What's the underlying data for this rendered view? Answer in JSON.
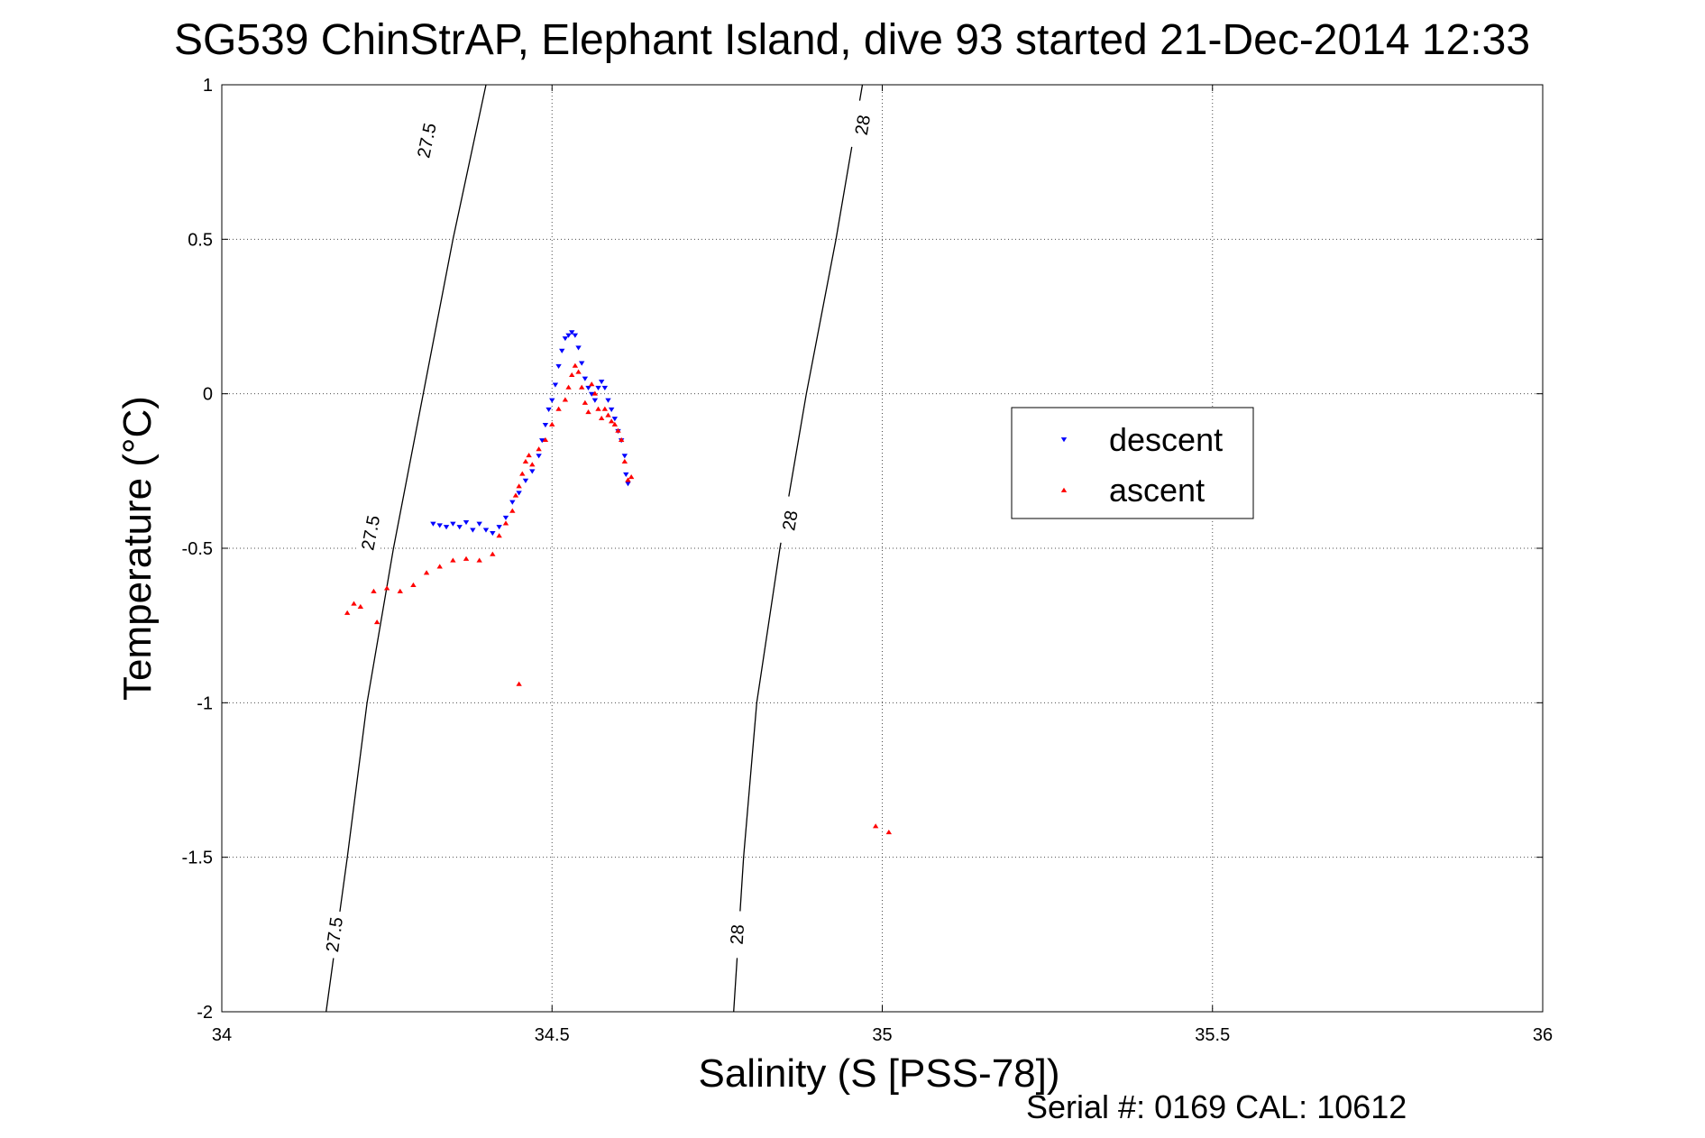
{
  "chart_data": {
    "type": "scatter",
    "title": "SG539 ChinStrAP, Elephant Island, dive 93 started 21-Dec-2014 12:33",
    "xlabel": "Salinity (S [PSS-78])",
    "ylabel": "Temperature (°C)",
    "xlim": [
      34,
      36
    ],
    "ylim": [
      -2,
      1
    ],
    "xticks": [
      34,
      34.5,
      35,
      35.5,
      36
    ],
    "xtick_labels": [
      "34",
      "34.5",
      "35",
      "35.5",
      "36"
    ],
    "yticks": [
      -2,
      -1.5,
      -1,
      -0.5,
      0,
      0.5,
      1
    ],
    "ytick_labels": [
      "-2",
      "-1.5",
      "-1",
      "-0.5",
      "0",
      "0.5",
      "1"
    ],
    "grid": true,
    "legend_position": "right-center",
    "colors": {
      "descent": "#0000ff",
      "ascent": "#ff0000",
      "contour": "#000000"
    },
    "contours": [
      {
        "level_label": "27.5",
        "points": [
          [
            34.158,
            -2.0
          ],
          [
            34.19,
            -1.5
          ],
          [
            34.22,
            -1.0
          ],
          [
            34.26,
            -0.5
          ],
          [
            34.305,
            0.0
          ],
          [
            34.35,
            0.5
          ],
          [
            34.4,
            1.0
          ]
        ],
        "labels_at": [
          [
            34.17,
            -1.75
          ],
          [
            34.225,
            -0.45
          ],
          [
            34.31,
            0.82
          ]
        ]
      },
      {
        "level_label": "28",
        "points": [
          [
            34.775,
            -2.0
          ],
          [
            34.79,
            -1.5
          ],
          [
            34.81,
            -1.0
          ],
          [
            34.845,
            -0.5
          ],
          [
            34.885,
            0.0
          ],
          [
            34.93,
            0.5
          ],
          [
            34.97,
            1.0
          ]
        ],
        "labels_at": [
          [
            34.78,
            -1.75
          ],
          [
            34.86,
            -0.41
          ],
          [
            34.97,
            0.87
          ]
        ]
      }
    ],
    "series": [
      {
        "name": "descent",
        "marker": "triangle-down",
        "points": [
          [
            34.32,
            -0.42
          ],
          [
            34.33,
            -0.425
          ],
          [
            34.34,
            -0.43
          ],
          [
            34.35,
            -0.42
          ],
          [
            34.36,
            -0.43
          ],
          [
            34.37,
            -0.415
          ],
          [
            34.38,
            -0.44
          ],
          [
            34.39,
            -0.42
          ],
          [
            34.4,
            -0.44
          ],
          [
            34.41,
            -0.45
          ],
          [
            34.42,
            -0.43
          ],
          [
            34.43,
            -0.4
          ],
          [
            34.44,
            -0.35
          ],
          [
            34.45,
            -0.32
          ],
          [
            34.46,
            -0.28
          ],
          [
            34.47,
            -0.25
          ],
          [
            34.48,
            -0.2
          ],
          [
            34.485,
            -0.15
          ],
          [
            34.49,
            -0.1
          ],
          [
            34.495,
            -0.05
          ],
          [
            34.5,
            -0.02
          ],
          [
            34.505,
            0.03
          ],
          [
            34.51,
            0.09
          ],
          [
            34.515,
            0.14
          ],
          [
            34.52,
            0.18
          ],
          [
            34.525,
            0.19
          ],
          [
            34.53,
            0.2
          ],
          [
            34.535,
            0.19
          ],
          [
            34.54,
            0.15
          ],
          [
            34.545,
            0.1
          ],
          [
            34.55,
            0.05
          ],
          [
            34.555,
            0.02
          ],
          [
            34.56,
            0.0
          ],
          [
            34.565,
            -0.02
          ],
          [
            34.57,
            0.02
          ],
          [
            34.575,
            0.04
          ],
          [
            34.58,
            0.02
          ],
          [
            34.585,
            -0.02
          ],
          [
            34.59,
            -0.05
          ],
          [
            34.595,
            -0.08
          ],
          [
            34.6,
            -0.12
          ],
          [
            34.605,
            -0.15
          ],
          [
            34.61,
            -0.2
          ],
          [
            34.612,
            -0.26
          ],
          [
            34.615,
            -0.29
          ]
        ]
      },
      {
        "name": "ascent",
        "marker": "triangle-up",
        "points": [
          [
            34.19,
            -0.71
          ],
          [
            34.2,
            -0.68
          ],
          [
            34.21,
            -0.69
          ],
          [
            34.23,
            -0.64
          ],
          [
            34.25,
            -0.63
          ],
          [
            34.27,
            -0.64
          ],
          [
            34.29,
            -0.62
          ],
          [
            34.31,
            -0.58
          ],
          [
            34.33,
            -0.56
          ],
          [
            34.35,
            -0.54
          ],
          [
            34.37,
            -0.535
          ],
          [
            34.39,
            -0.54
          ],
          [
            34.41,
            -0.52
          ],
          [
            34.42,
            -0.46
          ],
          [
            34.43,
            -0.42
          ],
          [
            34.44,
            -0.38
          ],
          [
            34.445,
            -0.33
          ],
          [
            34.45,
            -0.3
          ],
          [
            34.455,
            -0.26
          ],
          [
            34.46,
            -0.22
          ],
          [
            34.465,
            -0.2
          ],
          [
            34.47,
            -0.23
          ],
          [
            34.48,
            -0.18
          ],
          [
            34.49,
            -0.15
          ],
          [
            34.5,
            -0.1
          ],
          [
            34.51,
            -0.05
          ],
          [
            34.52,
            -0.02
          ],
          [
            34.525,
            0.02
          ],
          [
            34.53,
            0.06
          ],
          [
            34.535,
            0.09
          ],
          [
            34.54,
            0.07
          ],
          [
            34.545,
            0.02
          ],
          [
            34.55,
            -0.03
          ],
          [
            34.555,
            -0.06
          ],
          [
            34.56,
            0.03
          ],
          [
            34.565,
            0.0
          ],
          [
            34.57,
            -0.05
          ],
          [
            34.575,
            -0.08
          ],
          [
            34.58,
            -0.05
          ],
          [
            34.585,
            -0.07
          ],
          [
            34.59,
            -0.09
          ],
          [
            34.595,
            -0.1
          ],
          [
            34.6,
            -0.12
          ],
          [
            34.605,
            -0.15
          ],
          [
            34.61,
            -0.22
          ],
          [
            34.615,
            -0.28
          ],
          [
            34.62,
            -0.27
          ],
          [
            34.235,
            -0.74
          ],
          [
            34.45,
            -0.94
          ],
          [
            34.99,
            -1.4
          ],
          [
            35.01,
            -1.42
          ]
        ]
      }
    ]
  },
  "footer": {
    "serial_text": "Serial #: 0169 CAL: 10612"
  }
}
